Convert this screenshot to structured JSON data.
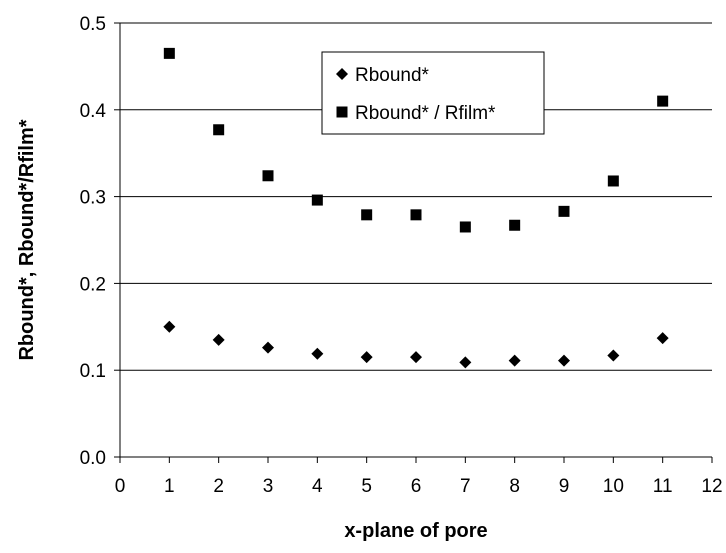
{
  "chart_data": {
    "type": "scatter",
    "title": "",
    "xlabel": "x-plane of pore",
    "ylabel": "Rbound*, Rbound*/Rfilm*",
    "xlim": [
      0,
      12
    ],
    "ylim": [
      0.0,
      0.5
    ],
    "xticks": [
      "0",
      "1",
      "2",
      "3",
      "4",
      "5",
      "6",
      "7",
      "8",
      "9",
      "10",
      "11",
      "12"
    ],
    "yticks": [
      "0.0",
      "0.1",
      "0.2",
      "0.3",
      "0.4",
      "0.5"
    ],
    "grid": "horizontal",
    "legend_position": "top-center",
    "series": [
      {
        "name": "Rbound*",
        "marker": "diamond",
        "color": "#000000",
        "points": [
          {
            "x": 1,
            "y": 0.15
          },
          {
            "x": 2,
            "y": 0.135
          },
          {
            "x": 3,
            "y": 0.126
          },
          {
            "x": 4,
            "y": 0.119
          },
          {
            "x": 5,
            "y": 0.115
          },
          {
            "x": 6,
            "y": 0.115
          },
          {
            "x": 7,
            "y": 0.109
          },
          {
            "x": 8,
            "y": 0.111
          },
          {
            "x": 9,
            "y": 0.111
          },
          {
            "x": 10,
            "y": 0.117
          },
          {
            "x": 11,
            "y": 0.137
          }
        ]
      },
      {
        "name": "Rbound* / Rfilm*",
        "marker": "square",
        "color": "#000000",
        "points": [
          {
            "x": 1,
            "y": 0.465
          },
          {
            "x": 2,
            "y": 0.377
          },
          {
            "x": 3,
            "y": 0.324
          },
          {
            "x": 4,
            "y": 0.296
          },
          {
            "x": 5,
            "y": 0.279
          },
          {
            "x": 6,
            "y": 0.279
          },
          {
            "x": 7,
            "y": 0.265
          },
          {
            "x": 8,
            "y": 0.267
          },
          {
            "x": 9,
            "y": 0.283
          },
          {
            "x": 10,
            "y": 0.318
          },
          {
            "x": 11,
            "y": 0.41
          }
        ]
      }
    ]
  }
}
